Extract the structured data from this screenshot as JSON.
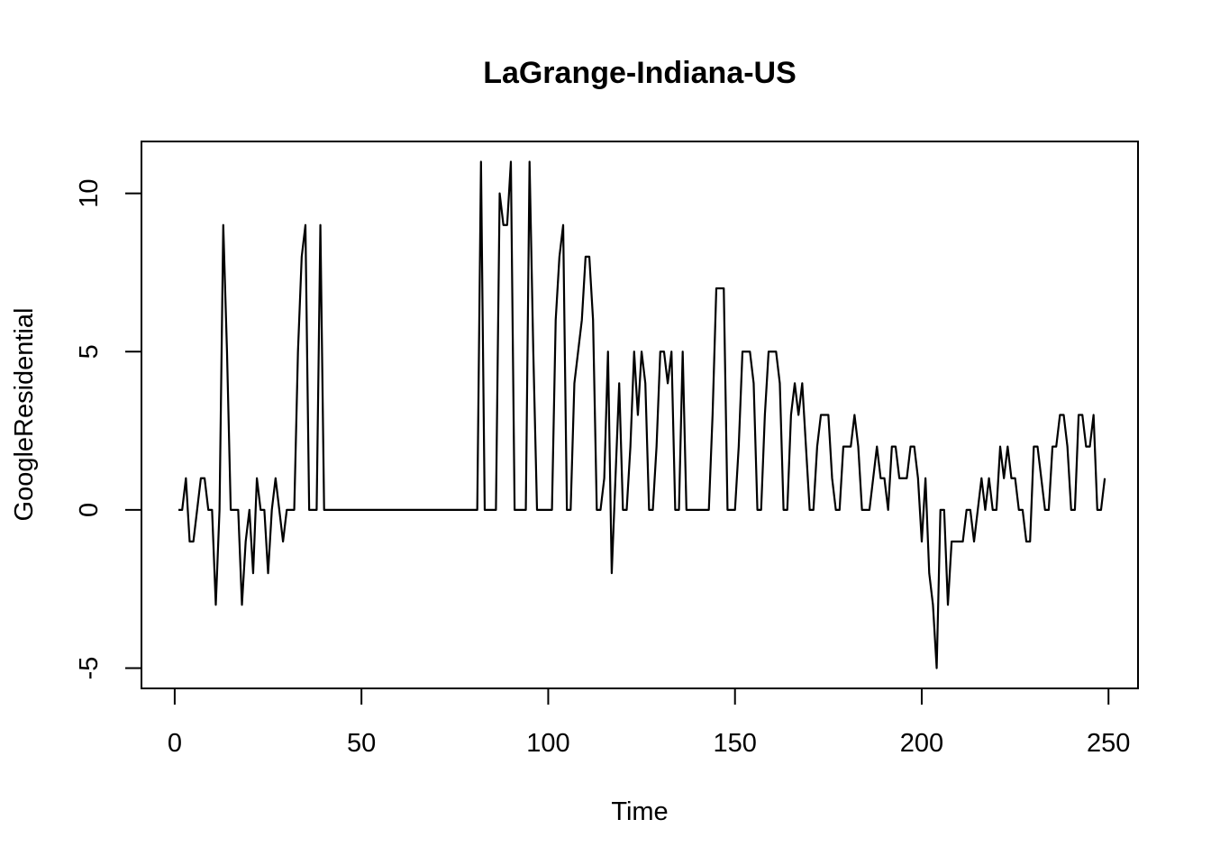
{
  "chart_data": {
    "type": "line",
    "title": "LaGrange-Indiana-US",
    "xlabel": "Time",
    "ylabel": "GoogleResidential",
    "xlim": [
      -8.9,
      257.9
    ],
    "ylim": [
      -5.64,
      11.64
    ],
    "x_ticks": [
      0,
      50,
      100,
      150,
      200,
      250
    ],
    "x_tick_labels": [
      "0",
      "50",
      "100",
      "150",
      "200",
      "250"
    ],
    "y_ticks": [
      -5,
      0,
      5,
      10
    ],
    "y_tick_labels": [
      "-5",
      "0",
      "5",
      "10"
    ],
    "grid": false,
    "legend": "none",
    "line_color": "#000000",
    "series": [
      {
        "x_start": 1,
        "values": [
          0,
          0,
          1,
          -1,
          -1,
          0,
          1,
          1,
          0,
          0,
          -3,
          0,
          9,
          5,
          0,
          0,
          0,
          -3,
          -1,
          0,
          -2,
          1,
          0,
          0,
          -2,
          0,
          1,
          0,
          -1,
          0,
          0,
          0,
          5,
          8,
          9,
          0,
          0,
          0,
          9,
          0,
          0,
          0,
          0,
          0,
          0,
          0,
          0,
          0,
          0,
          0,
          0,
          0,
          0,
          0,
          0,
          0,
          0,
          0,
          0,
          0,
          0,
          0,
          0,
          0,
          0,
          0,
          0,
          0,
          0,
          0,
          0,
          0,
          0,
          0,
          0,
          0,
          0,
          0,
          0,
          0,
          0,
          11,
          0,
          0,
          0,
          0,
          10,
          9,
          9,
          11,
          0,
          0,
          0,
          0,
          11,
          5,
          0,
          0,
          0,
          0,
          0,
          6,
          8,
          9,
          0,
          0,
          4,
          5,
          6,
          8,
          8,
          6,
          0,
          0,
          1,
          5,
          -2,
          1,
          4,
          0,
          0,
          2,
          5,
          3,
          5,
          4,
          0,
          0,
          2,
          5,
          5,
          4,
          5,
          0,
          0,
          5,
          0,
          0,
          0,
          0,
          0,
          0,
          0,
          3,
          7,
          7,
          7,
          0,
          0,
          0,
          2,
          5,
          5,
          5,
          4,
          0,
          0,
          3,
          5,
          5,
          5,
          4,
          0,
          0,
          3,
          4,
          3,
          4,
          2,
          0,
          0,
          2,
          3,
          3,
          3,
          1,
          0,
          0,
          2,
          2,
          2,
          3,
          2,
          0,
          0,
          0,
          1,
          2,
          1,
          1,
          0,
          2,
          2,
          1,
          1,
          1,
          2,
          2,
          1,
          -1,
          1,
          -2,
          -3,
          -5,
          0,
          0,
          -3,
          -1,
          -1,
          -1,
          -1,
          0,
          0,
          -1,
          0,
          1,
          0,
          1,
          0,
          0,
          2,
          1,
          2,
          1,
          1,
          0,
          0,
          -1,
          -1,
          2,
          2,
          1,
          0,
          0,
          2,
          2,
          3,
          3,
          2,
          0,
          0,
          3,
          3,
          2,
          2,
          3,
          0,
          0,
          1
        ]
      }
    ]
  }
}
